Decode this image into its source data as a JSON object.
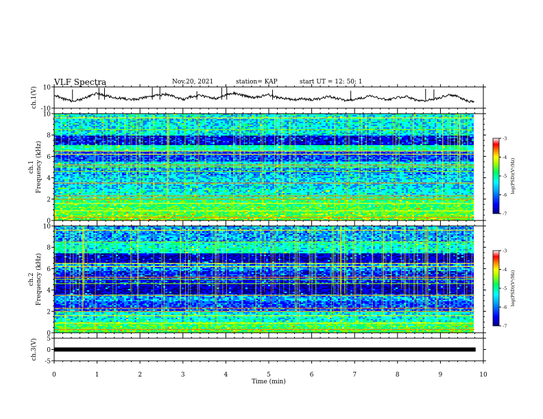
{
  "header": {
    "title": "VLF Spectra",
    "date": "Nov.20, 2021",
    "station": "station= KAP",
    "start": "start  UT =   12: 50: 1"
  },
  "colors": {
    "colormap": [
      "#000080",
      "#0000ff",
      "#0080ff",
      "#00ffff",
      "#00ff80",
      "#80ff00",
      "#ffff00",
      "#ff8000",
      "#ff0000",
      "#ffffff"
    ],
    "trace": "#000000",
    "frame": "#000000"
  },
  "chart_data": [
    {
      "type": "line",
      "panel": "ch1-waveform",
      "ylabel": "ch.1(V)",
      "ylim": [
        -10,
        10
      ],
      "yticks": [
        "10",
        "-10"
      ],
      "xlim": [
        0,
        10
      ],
      "series": [
        {
          "x": [
            0,
            0.2,
            0.4,
            0.6,
            0.8,
            1.0,
            1.2,
            1.4,
            1.6,
            1.8,
            2.0,
            2.2,
            2.4,
            2.6,
            2.8,
            3.0,
            3.2,
            3.4,
            3.6,
            3.8,
            4.0,
            4.2,
            4.4,
            4.6,
            4.8,
            5.0,
            5.2,
            5.4,
            5.6,
            5.8,
            6.0,
            6.2,
            6.4,
            6.6,
            6.8,
            7.0,
            7.2,
            7.4,
            7.6,
            7.8,
            8.0,
            8.2,
            8.4,
            8.6,
            8.8,
            9.0,
            9.2,
            9.4,
            9.6,
            9.8
          ],
          "y": [
            2,
            -1,
            -3,
            -2,
            1,
            4,
            2,
            0,
            -1,
            -2,
            -1,
            1,
            2,
            3,
            1,
            -2,
            1,
            2,
            0,
            -1,
            3,
            4,
            2,
            0,
            1,
            3,
            0,
            -1,
            -2,
            -1,
            -2,
            -1,
            1,
            -1,
            -3,
            -2,
            0,
            2,
            -1,
            -2,
            0,
            1,
            -2,
            -3,
            -2,
            0,
            3,
            1,
            -3,
            -4
          ]
        }
      ]
    },
    {
      "type": "heatmap",
      "panel": "ch1-spectrogram",
      "ylabel": "ch.1 Frequency (kHz)",
      "xlim": [
        0,
        10
      ],
      "ylim": [
        0,
        10
      ],
      "yticks": [
        "0",
        "2",
        "4",
        "6",
        "8",
        "10"
      ],
      "colorbar": {
        "label": "log(PSD)(V²/Hz)",
        "range": [
          -7,
          -3
        ],
        "ticks": [
          "-3",
          "-4",
          "-5",
          "-6",
          "-7"
        ]
      }
    },
    {
      "type": "heatmap",
      "panel": "ch2-spectrogram",
      "ylabel": "ch.2 Frequency (kHz)",
      "xlim": [
        0,
        10
      ],
      "ylim": [
        0,
        10
      ],
      "yticks": [
        "0",
        "2",
        "4",
        "6",
        "8",
        "10"
      ],
      "colorbar": {
        "label": "log(PSD)(V²/Hz)",
        "range": [
          -7,
          -3
        ],
        "ticks": [
          "-3",
          "-4",
          "-5",
          "-6",
          "-7"
        ]
      }
    },
    {
      "type": "line",
      "panel": "ch3-waveform",
      "ylabel": "ch.3(V)",
      "ylim": [
        -5,
        5
      ],
      "yticks": [
        "5",
        "0",
        "-5"
      ],
      "xlim": [
        0,
        10
      ],
      "xlabel": "Time  (min)",
      "xticks": [
        "0",
        "1",
        "2",
        "3",
        "4",
        "5",
        "6",
        "7",
        "8",
        "9",
        "10"
      ],
      "series": [
        {
          "x": [
            0,
            9.82
          ],
          "y": [
            0,
            0
          ]
        }
      ]
    }
  ]
}
